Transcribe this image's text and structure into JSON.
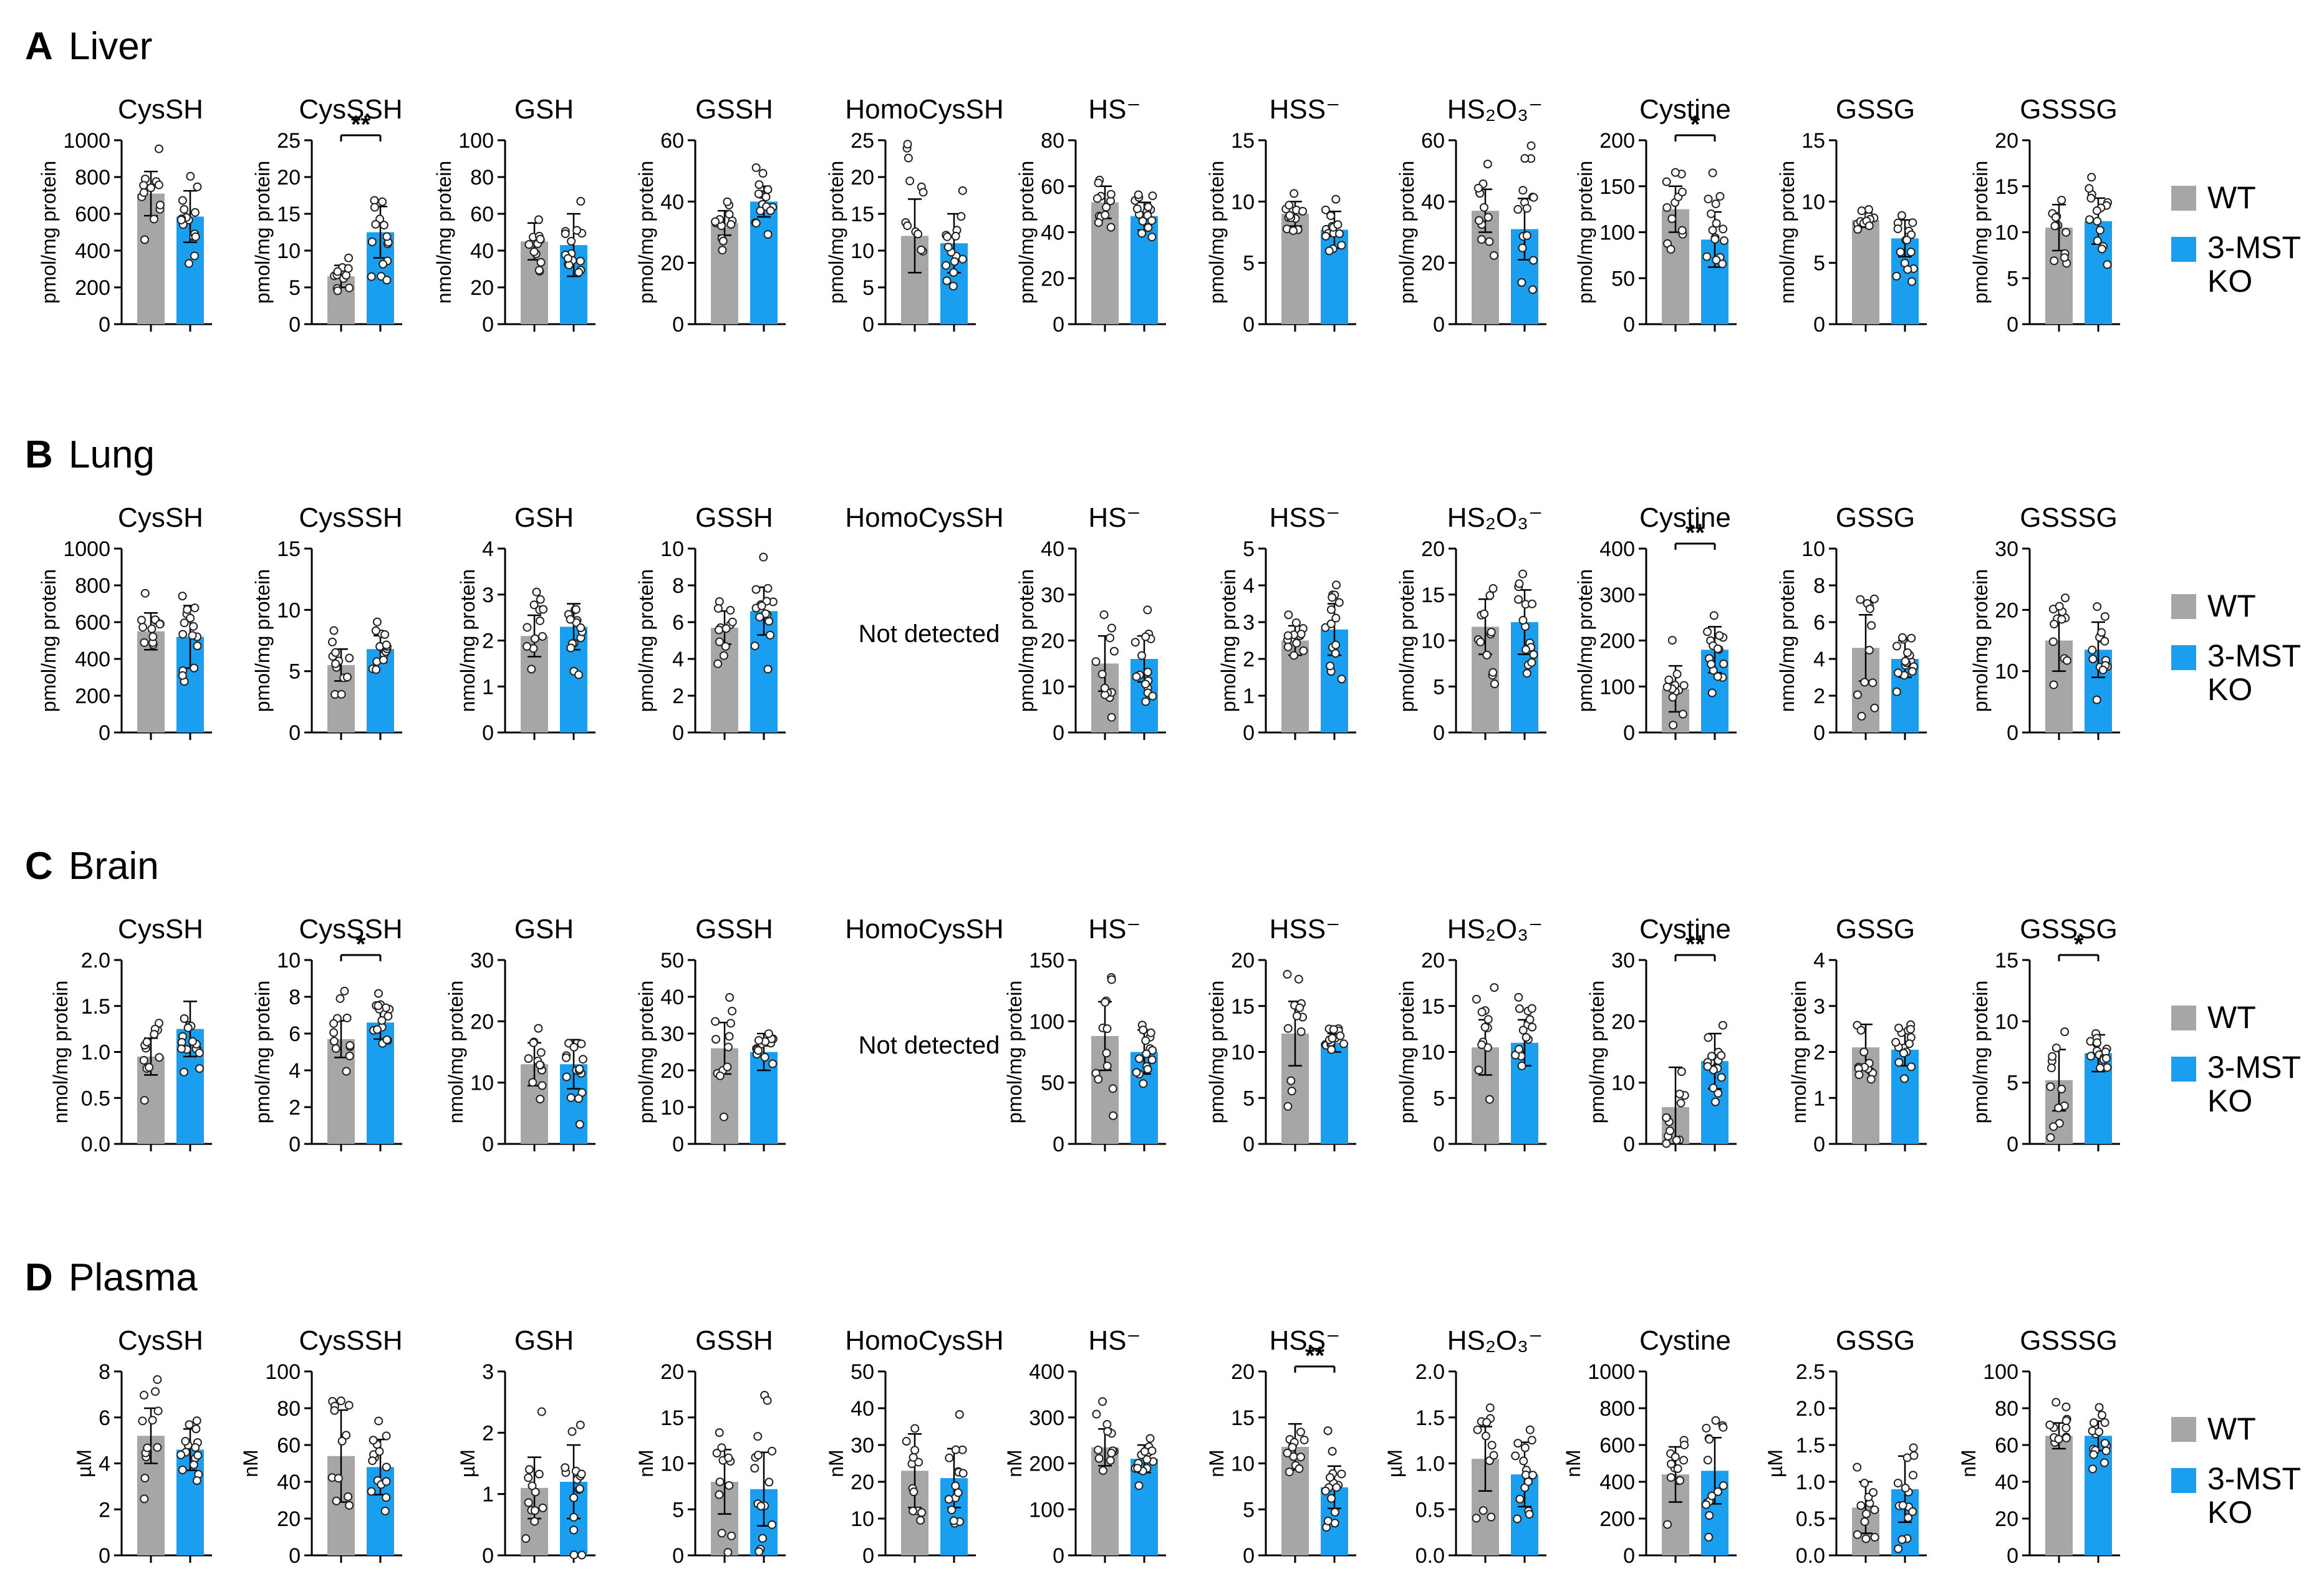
{
  "figure": {
    "legend": {
      "wt": "WT",
      "ko_line1": "3-MST",
      "ko_line2": "KO"
    },
    "colors": {
      "wt": "#a6a6a6",
      "ko": "#1a9ff0",
      "text": "#000000",
      "dot_edge": "#222222"
    }
  },
  "chart_data": [
    {
      "panel_letter": "A",
      "panel_title": "Liver",
      "type": "bar",
      "categories": [
        "WT",
        "3-MST KO"
      ],
      "charts": [
        {
          "title": "CysSH",
          "ylabel": "pmol/mg protein",
          "ylim": [
            0,
            1000
          ],
          "ticks": [
            0,
            200,
            400,
            600,
            800,
            1000
          ],
          "values": [
            710,
            585
          ],
          "errors": [
            120,
            140
          ],
          "sig": null
        },
        {
          "title": "CysSSH",
          "ylabel": "pmol/mg protein",
          "ylim": [
            0,
            25
          ],
          "ticks": [
            0,
            5,
            10,
            15,
            20,
            25
          ],
          "values": [
            6.5,
            12.5
          ],
          "errors": [
            1.5,
            3.5
          ],
          "sig": "**"
        },
        {
          "title": "GSH",
          "ylabel": "nmol/mg protein",
          "ylim": [
            0,
            100
          ],
          "ticks": [
            0,
            20,
            40,
            60,
            80,
            100
          ],
          "values": [
            45,
            43
          ],
          "errors": [
            10,
            17
          ],
          "sig": null
        },
        {
          "title": "GSSH",
          "ylabel": "pmol/mg protein",
          "ylim": [
            0,
            60
          ],
          "ticks": [
            0,
            20,
            40,
            60
          ],
          "values": [
            33,
            40
          ],
          "errors": [
            4,
            5
          ],
          "sig": null
        },
        {
          "title": "HomoCysSH",
          "ylabel": "pmol/mg protein",
          "ylim": [
            0,
            25
          ],
          "ticks": [
            0,
            5,
            10,
            15,
            20,
            25
          ],
          "values": [
            12,
            11
          ],
          "errors": [
            5,
            4
          ],
          "sig": null
        },
        {
          "title": "HS⁻",
          "ylabel": "pmol/mg protein",
          "ylim": [
            0,
            80
          ],
          "ticks": [
            0,
            20,
            40,
            60,
            80
          ],
          "values": [
            53,
            47
          ],
          "errors": [
            7,
            6
          ],
          "sig": null
        },
        {
          "title": "HSS⁻",
          "ylabel": "pmol/mg protein",
          "ylim": [
            0,
            15
          ],
          "ticks": [
            0,
            5,
            10,
            15
          ],
          "values": [
            9,
            7.7
          ],
          "errors": [
            1,
            1.5
          ],
          "sig": null
        },
        {
          "title": "HS₂O₃⁻",
          "ylabel": "pmol/mg protein",
          "ylim": [
            0,
            60
          ],
          "ticks": [
            0,
            20,
            40,
            60
          ],
          "values": [
            37,
            31
          ],
          "errors": [
            7,
            10
          ],
          "sig": null
        },
        {
          "title": "Cystine",
          "ylabel": "pmol/mg protein",
          "ylim": [
            0,
            200
          ],
          "ticks": [
            0,
            50,
            100,
            150,
            200
          ],
          "values": [
            125,
            92
          ],
          "errors": [
            25,
            30
          ],
          "sig": "*"
        },
        {
          "title": "GSSG",
          "ylabel": "nmol/mg protein",
          "ylim": [
            0,
            15
          ],
          "ticks": [
            0,
            5,
            10,
            15
          ],
          "values": [
            8.5,
            7
          ],
          "errors": [
            0.6,
            1.5
          ],
          "sig": null
        },
        {
          "title": "GSSSG",
          "ylabel": "pmol/mg protein",
          "ylim": [
            0,
            20
          ],
          "ticks": [
            0,
            5,
            10,
            15,
            20
          ],
          "values": [
            10.5,
            11.2
          ],
          "errors": [
            2.5,
            2.5
          ],
          "sig": null
        }
      ]
    },
    {
      "panel_letter": "B",
      "panel_title": "Lung",
      "type": "bar",
      "categories": [
        "WT",
        "3-MST KO"
      ],
      "not_detected_label": "Not detected",
      "charts": [
        {
          "title": "CysSH",
          "ylabel": "pmol/mg protein",
          "ylim": [
            0,
            1000
          ],
          "ticks": [
            0,
            200,
            400,
            600,
            800,
            1000
          ],
          "values": [
            550,
            520
          ],
          "errors": [
            100,
            170
          ],
          "sig": null
        },
        {
          "title": "CysSSH",
          "ylabel": "pmol/mg protein",
          "ylim": [
            0,
            15
          ],
          "ticks": [
            0,
            5,
            10,
            15
          ],
          "values": [
            5.5,
            6.8
          ],
          "errors": [
            1.3,
            1.1
          ],
          "sig": null
        },
        {
          "title": "GSH",
          "ylabel": "nmol/mg protein",
          "ylim": [
            0,
            4
          ],
          "ticks": [
            0,
            1,
            2,
            3,
            4
          ],
          "values": [
            2.1,
            2.3
          ],
          "errors": [
            0.45,
            0.5
          ],
          "sig": null
        },
        {
          "title": "GSSH",
          "ylabel": "pmol/mg protein",
          "ylim": [
            0,
            10
          ],
          "ticks": [
            0,
            2,
            4,
            6,
            8,
            10
          ],
          "values": [
            5.7,
            6.6
          ],
          "errors": [
            0.9,
            1.3
          ],
          "sig": null
        },
        {
          "title": "HomoCysSH",
          "not_detected": true
        },
        {
          "title": "HS⁻",
          "ylabel": "pmol/mg protein",
          "ylim": [
            0,
            40
          ],
          "ticks": [
            0,
            10,
            20,
            30,
            40
          ],
          "values": [
            15,
            16
          ],
          "errors": [
            6,
            5
          ],
          "sig": null
        },
        {
          "title": "HSS⁻",
          "ylabel": "pmol/mg protein",
          "ylim": [
            0,
            5
          ],
          "ticks": [
            0,
            1,
            2,
            3,
            4,
            5
          ],
          "values": [
            2.5,
            2.8
          ],
          "errors": [
            0.4,
            0.7
          ],
          "sig": null
        },
        {
          "title": "HS₂O₃⁻",
          "ylabel": "pmol/mg protein",
          "ylim": [
            0,
            20
          ],
          "ticks": [
            0,
            5,
            10,
            15,
            20
          ],
          "values": [
            11.5,
            12
          ],
          "errors": [
            3,
            3.5
          ],
          "sig": null
        },
        {
          "title": "Cystine",
          "ylabel": "pmol/mg protein",
          "ylim": [
            0,
            400
          ],
          "ticks": [
            0,
            100,
            200,
            300,
            400
          ],
          "values": [
            95,
            180
          ],
          "errors": [
            50,
            50
          ],
          "sig": "**"
        },
        {
          "title": "GSSG",
          "ylabel": "nmol/mg protein",
          "ylim": [
            0,
            10
          ],
          "ticks": [
            0,
            2,
            4,
            6,
            8,
            10
          ],
          "values": [
            4.6,
            4
          ],
          "errors": [
            1.8,
            1
          ],
          "sig": null
        },
        {
          "title": "GSSSG",
          "ylabel": "pmol/mg protein",
          "ylim": [
            0,
            30
          ],
          "ticks": [
            0,
            10,
            20,
            30
          ],
          "values": [
            15,
            13.5
          ],
          "errors": [
            5,
            4.5
          ],
          "sig": null
        }
      ]
    },
    {
      "panel_letter": "C",
      "panel_title": "Brain",
      "type": "bar",
      "categories": [
        "WT",
        "3-MST KO"
      ],
      "not_detected_label": "Not detected",
      "charts": [
        {
          "title": "CysSH",
          "ylabel": "nmol/mg protein",
          "ylim": [
            0,
            2.0
          ],
          "ticks": [
            "0.0",
            "0.5",
            "1.0",
            "1.5",
            "2.0"
          ],
          "values": [
            0.95,
            1.25
          ],
          "errors": [
            0.2,
            0.3
          ],
          "sig": null
        },
        {
          "title": "CysSSH",
          "ylabel": "pmol/mg protein",
          "ylim": [
            0,
            10
          ],
          "ticks": [
            0,
            2,
            4,
            6,
            8,
            10
          ],
          "values": [
            5.7,
            6.6
          ],
          "errors": [
            1,
            0.9
          ],
          "sig": "*"
        },
        {
          "title": "GSH",
          "ylabel": "nmol/mg protein",
          "ylim": [
            0,
            30
          ],
          "ticks": [
            0,
            10,
            20,
            30
          ],
          "values": [
            13,
            13
          ],
          "errors": [
            3.5,
            4
          ],
          "sig": null
        },
        {
          "title": "GSSH",
          "ylabel": "pmol/mg protein",
          "ylim": [
            0,
            50
          ],
          "ticks": [
            0,
            10,
            20,
            30,
            40,
            50
          ],
          "values": [
            26,
            25
          ],
          "errors": [
            7,
            5
          ],
          "sig": null
        },
        {
          "title": "HomoCysSH",
          "not_detected": true
        },
        {
          "title": "HS⁻",
          "ylabel": "pmol/mg protein",
          "ylim": [
            0,
            150
          ],
          "ticks": [
            0,
            50,
            100,
            150
          ],
          "values": [
            88,
            75
          ],
          "errors": [
            28,
            18
          ],
          "sig": null
        },
        {
          "title": "HSS⁻",
          "ylabel": "pmol/mg protein",
          "ylim": [
            0,
            20
          ],
          "ticks": [
            0,
            5,
            10,
            15,
            20
          ],
          "values": [
            12,
            11
          ],
          "errors": [
            3.5,
            1
          ],
          "sig": null
        },
        {
          "title": "HS₂O₃⁻",
          "ylabel": "pmol/mg protein",
          "ylim": [
            0,
            20
          ],
          "ticks": [
            0,
            5,
            10,
            15,
            20
          ],
          "values": [
            10.5,
            11
          ],
          "errors": [
            3,
            2.5
          ],
          "sig": null
        },
        {
          "title": "Cystine",
          "ylabel": "pmol/mg protein",
          "ylim": [
            0,
            30
          ],
          "ticks": [
            0,
            10,
            20,
            30
          ],
          "values": [
            6,
            13.5
          ],
          "errors": [
            6.5,
            4.5
          ],
          "sig": "**"
        },
        {
          "title": "GSSG",
          "ylabel": "nmol/mg protein",
          "ylim": [
            0,
            4
          ],
          "ticks": [
            0,
            1,
            2,
            3,
            4
          ],
          "values": [
            2.1,
            2.05
          ],
          "errors": [
            0.5,
            0.35
          ],
          "sig": null
        },
        {
          "title": "GSSSG",
          "ylabel": "pmol/mg protein",
          "ylim": [
            0,
            15
          ],
          "ticks": [
            0,
            5,
            10,
            15
          ],
          "values": [
            5.2,
            7.4
          ],
          "errors": [
            2.5,
            1.5
          ],
          "sig": "*"
        }
      ]
    },
    {
      "panel_letter": "D",
      "panel_title": "Plasma",
      "type": "bar",
      "categories": [
        "WT",
        "3-MST KO"
      ],
      "charts": [
        {
          "title": "CysSH",
          "ylabel": "µM",
          "ylim": [
            0,
            8
          ],
          "ticks": [
            0,
            2,
            4,
            6,
            8
          ],
          "values": [
            5.2,
            4.6
          ],
          "errors": [
            1.2,
            0.9
          ],
          "sig": null
        },
        {
          "title": "CysSSH",
          "ylabel": "nM",
          "ylim": [
            0,
            100
          ],
          "ticks": [
            0,
            20,
            40,
            60,
            80,
            100
          ],
          "values": [
            54,
            48
          ],
          "errors": [
            25,
            15
          ],
          "sig": null
        },
        {
          "title": "GSH",
          "ylabel": "µM",
          "ylim": [
            0,
            3
          ],
          "ticks": [
            0,
            1,
            2,
            3
          ],
          "values": [
            1.1,
            1.2
          ],
          "errors": [
            0.5,
            0.6
          ],
          "sig": null
        },
        {
          "title": "GSSH",
          "ylabel": "nM",
          "ylim": [
            0,
            20
          ],
          "ticks": [
            0,
            5,
            10,
            15,
            20
          ],
          "values": [
            8,
            7.2
          ],
          "errors": [
            3.5,
            4
          ],
          "sig": null
        },
        {
          "title": "HomoCysSH",
          "ylabel": "nM",
          "ylim": [
            0,
            50
          ],
          "ticks": [
            0,
            10,
            20,
            30,
            40,
            50
          ],
          "values": [
            23,
            21
          ],
          "errors": [
            10,
            8
          ],
          "sig": null
        },
        {
          "title": "HS⁻",
          "ylabel": "nM",
          "ylim": [
            0,
            400
          ],
          "ticks": [
            0,
            100,
            200,
            300,
            400
          ],
          "values": [
            235,
            210
          ],
          "errors": [
            40,
            30
          ],
          "sig": null
        },
        {
          "title": "HSS⁻",
          "ylabel": "nM",
          "ylim": [
            0,
            20
          ],
          "ticks": [
            0,
            5,
            10,
            15,
            20
          ],
          "values": [
            11.8,
            7.4
          ],
          "errors": [
            2.5,
            2.3
          ],
          "sig": "**"
        },
        {
          "title": "HS₂O₃⁻",
          "ylabel": "µM",
          "ylim": [
            0,
            2.0
          ],
          "ticks": [
            "0.0",
            "0.5",
            "1.0",
            "1.5",
            "2.0"
          ],
          "values": [
            1.05,
            0.88
          ],
          "errors": [
            0.35,
            0.35
          ],
          "sig": null
        },
        {
          "title": "Cystine",
          "ylabel": "nM",
          "ylim": [
            0,
            1000
          ],
          "ticks": [
            0,
            200,
            400,
            600,
            800,
            1000
          ],
          "values": [
            440,
            460
          ],
          "errors": [
            150,
            180
          ],
          "sig": null
        },
        {
          "title": "GSSG",
          "ylabel": "µM",
          "ylim": [
            0,
            2.5
          ],
          "ticks": [
            "0.0",
            "0.5",
            "1.0",
            "1.5",
            "2.0",
            "2.5"
          ],
          "values": [
            0.65,
            0.9
          ],
          "errors": [
            0.35,
            0.45
          ],
          "sig": null
        },
        {
          "title": "GSSSG",
          "ylabel": "nM",
          "ylim": [
            0,
            100
          ],
          "ticks": [
            0,
            20,
            40,
            60,
            80,
            100
          ],
          "values": [
            65,
            65
          ],
          "errors": [
            7,
            8
          ],
          "sig": null
        }
      ]
    }
  ]
}
